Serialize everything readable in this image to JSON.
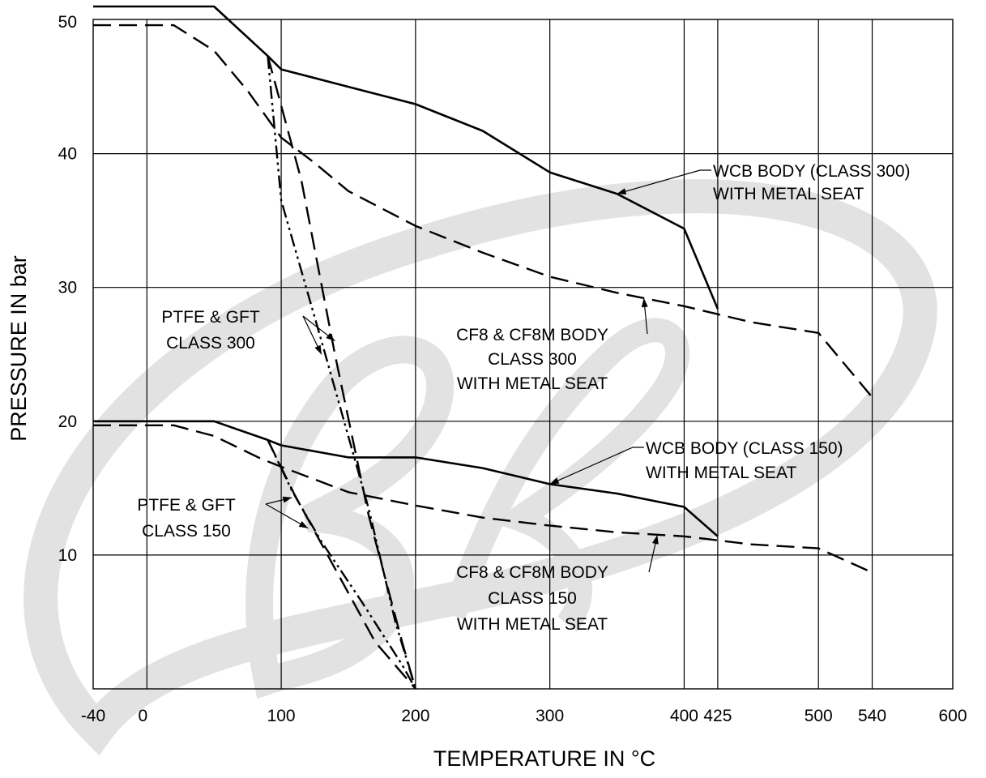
{
  "chart_data": {
    "type": "line",
    "title": "",
    "xlabel": "TEMPERATURE IN  °C",
    "ylabel": "PRESSURE IN bar",
    "xlim": [
      -40,
      600
    ],
    "ylim": [
      0,
      51
    ],
    "grid": true,
    "x_ticks": [
      -40,
      0,
      100,
      200,
      300,
      400,
      425,
      500,
      540,
      600
    ],
    "y_ticks": [
      10,
      20,
      30,
      40,
      50
    ],
    "series": [
      {
        "style": "solid",
        "points": [
          [
            -40,
            51
          ],
          [
            50,
            51
          ],
          [
            90,
            47.3
          ],
          [
            100,
            46.3
          ],
          [
            150,
            45
          ],
          [
            200,
            43.7
          ],
          [
            250,
            41.7
          ],
          [
            300,
            38.6
          ],
          [
            350,
            37
          ],
          [
            400,
            34.4
          ],
          [
            425,
            28.4
          ]
        ]
      },
      {
        "style": "dashed",
        "points": [
          [
            -40,
            49.6
          ],
          [
            20,
            49.6
          ],
          [
            50,
            47.7
          ],
          [
            75,
            44.7
          ],
          [
            100,
            41.2
          ],
          [
            125,
            39.3
          ],
          [
            150,
            37.2
          ],
          [
            200,
            34.6
          ],
          [
            250,
            32.6
          ],
          [
            300,
            30.8
          ],
          [
            350,
            29.6
          ],
          [
            400,
            28.6
          ],
          [
            425,
            28
          ],
          [
            450,
            27.4
          ],
          [
            500,
            26.6
          ],
          [
            540,
            21.8
          ]
        ]
      },
      {
        "style": "dash-dot",
        "points": [
          [
            90,
            47.3
          ],
          [
            100,
            36.5
          ],
          [
            130,
            26
          ],
          [
            165,
            13.5
          ],
          [
            185,
            5
          ],
          [
            200,
            0
          ]
        ]
      },
      {
        "style": "dashed",
        "points": [
          [
            90,
            47.3
          ],
          [
            115,
            38
          ],
          [
            140,
            25
          ],
          [
            165,
            13
          ],
          [
            190,
            3.5
          ],
          [
            200,
            0
          ]
        ]
      },
      {
        "style": "solid",
        "points": [
          [
            -40,
            20
          ],
          [
            50,
            20
          ],
          [
            90,
            18.6
          ],
          [
            100,
            18.2
          ],
          [
            150,
            17.3
          ],
          [
            200,
            17.3
          ],
          [
            250,
            16.5
          ],
          [
            300,
            15.3
          ],
          [
            350,
            14.6
          ],
          [
            400,
            13.6
          ],
          [
            425,
            11.4
          ]
        ]
      },
      {
        "style": "dashed",
        "points": [
          [
            -40,
            19.7
          ],
          [
            20,
            19.7
          ],
          [
            50,
            18.9
          ],
          [
            85,
            17.2
          ],
          [
            100,
            16.6
          ],
          [
            150,
            14.7
          ],
          [
            200,
            13.7
          ],
          [
            250,
            12.8
          ],
          [
            300,
            12.2
          ],
          [
            350,
            11.7
          ],
          [
            400,
            11.4
          ],
          [
            425,
            11.1
          ],
          [
            450,
            10.8
          ],
          [
            500,
            10.5
          ],
          [
            540,
            8.7
          ]
        ]
      },
      {
        "style": "dash-dot",
        "points": [
          [
            90,
            18.6
          ],
          [
            108,
            14.8
          ],
          [
            130,
            11
          ],
          [
            160,
            6.5
          ],
          [
            190,
            1.8
          ],
          [
            200,
            0
          ]
        ]
      },
      {
        "style": "dashed",
        "points": [
          [
            90,
            18.6
          ],
          [
            110,
            14.5
          ],
          [
            140,
            9
          ],
          [
            170,
            3.5
          ],
          [
            200,
            0
          ]
        ]
      }
    ],
    "annotations": [
      {
        "lines": [
          "WCB BODY (CLASS 300)",
          "WITH METAL SEAT"
        ],
        "arrow_to": [
          350,
          37
        ]
      },
      {
        "lines": [
          "CF8 & CF8M BODY",
          "CLASS 300",
          "WITH METAL SEAT"
        ],
        "arrow_to": [
          370,
          29.2
        ]
      },
      {
        "lines": [
          "PTFE & GFT",
          "CLASS 300"
        ],
        "arrow_to": [
          [
            130,
            25
          ],
          [
            140,
            26
          ]
        ]
      },
      {
        "lines": [
          "WCB BODY  (CLASS 150)",
          "WITH METAL SEAT"
        ],
        "arrow_to": [
          300,
          15.3
        ]
      },
      {
        "lines": [
          "PTFE & GFT",
          "CLASS 150"
        ],
        "arrow_to": [
          [
            108,
            14.3
          ],
          [
            120,
            12
          ]
        ]
      },
      {
        "lines": [
          "CF8 & CF8M BODY",
          "CLASS 150",
          "WITH METAL SEAT"
        ],
        "arrow_to": [
          380,
          11.5
        ]
      }
    ]
  }
}
